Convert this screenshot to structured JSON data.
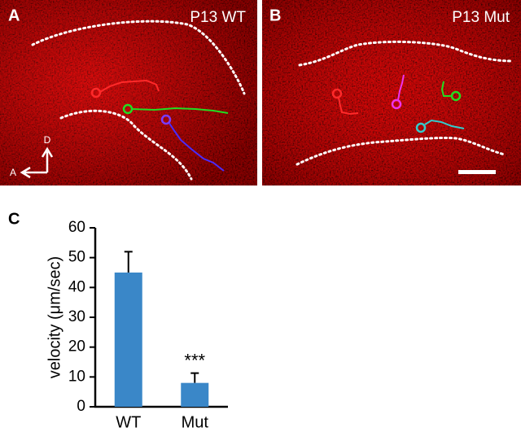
{
  "panels": [
    {
      "label": "A",
      "title": "P13 WT",
      "axis_labels": [
        "D",
        "A"
      ]
    },
    {
      "label": "B",
      "title": "P13 Mut"
    }
  ],
  "chart_data": {
    "type": "bar",
    "panel_label": "C",
    "y_label": "velocity (μm/sec)",
    "categories": [
      "WT",
      "Mut"
    ],
    "values": [
      45,
      8
    ],
    "errors": [
      7,
      3.3
    ],
    "color": "#3a87c8",
    "annotation": "***",
    "ylim": [
      0,
      60
    ],
    "yticks": [
      0,
      10,
      20,
      30,
      40,
      50,
      60
    ]
  }
}
